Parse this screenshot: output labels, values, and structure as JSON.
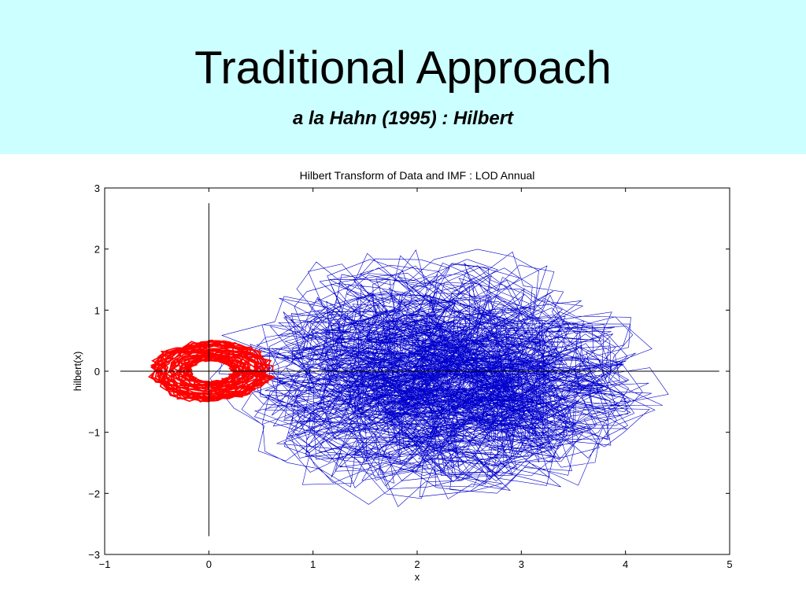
{
  "slide": {
    "title": "Traditional Approach",
    "subtitle": "a la Hahn  (1995) : Hilbert",
    "header_bg": "#ccffff"
  },
  "chart_data": {
    "type": "line",
    "title": "Hilbert Transform of Data and IMF : LOD Annual",
    "xlabel": "x",
    "ylabel": "hilbert(x)",
    "xlim": [
      -1,
      5
    ],
    "ylim": [
      -3,
      3
    ],
    "xticks": [
      -1,
      0,
      1,
      2,
      3,
      4,
      5
    ],
    "yticks": [
      -3,
      -2,
      -1,
      0,
      1,
      2,
      3
    ],
    "reference_lines": {
      "horizontal": {
        "y": 0,
        "x_range": [
          -0.85,
          4.9
        ]
      },
      "vertical": {
        "x": 0,
        "y_range": [
          -2.7,
          2.75
        ]
      }
    },
    "series": [
      {
        "color": "#0000cc",
        "description": "Hilbert phase-plane trajectory of annual LOD data",
        "center": [
          2.25,
          -0.1
        ],
        "x_extent": [
          -0.3,
          4.4
        ],
        "y_extent": [
          -2.3,
          2.3
        ],
        "loops": 230
      },
      {
        "color": "#ff0000",
        "description": "Hilbert phase-plane trajectory of IMF component",
        "center": [
          0.02,
          0.0
        ],
        "x_extent": [
          -0.6,
          0.62
        ],
        "y_extent": [
          -0.55,
          0.55
        ],
        "loops": 40
      }
    ]
  }
}
